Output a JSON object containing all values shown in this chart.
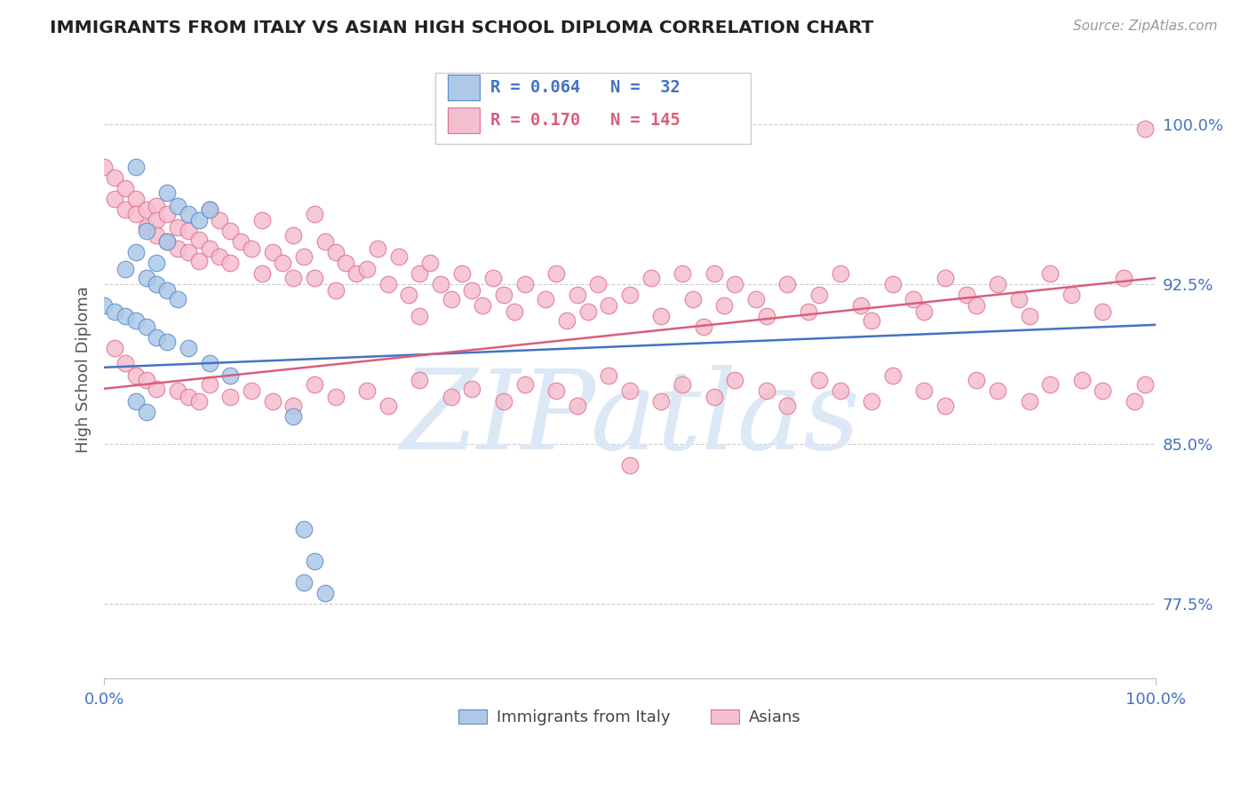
{
  "title": "IMMIGRANTS FROM ITALY VS ASIAN HIGH SCHOOL DIPLOMA CORRELATION CHART",
  "source": "Source: ZipAtlas.com",
  "ylabel": "High School Diploma",
  "x_tick_labels": [
    "0.0%",
    "100.0%"
  ],
  "y_tick_labels": [
    "77.5%",
    "85.0%",
    "92.5%",
    "100.0%"
  ],
  "y_tick_values": [
    0.775,
    0.85,
    0.925,
    1.0
  ],
  "legend_label_blue": "Immigrants from Italy",
  "legend_label_pink": "Asians",
  "R_blue": 0.064,
  "N_blue": 32,
  "R_pink": 0.17,
  "N_pink": 145,
  "blue_color": "#adc8e8",
  "blue_edge_color": "#5b8bc9",
  "pink_color": "#f5bece",
  "pink_edge_color": "#e07090",
  "blue_line_color": "#4472c4",
  "pink_line_color": "#d95f7a",
  "title_color": "#222222",
  "tick_label_color": "#4472c4",
  "source_color": "#999999",
  "ylabel_color": "#555555",
  "background_color": "#ffffff",
  "watermark_color": "#dce8f5",
  "blue_scatter_x": [
    0.03,
    0.06,
    0.07,
    0.08,
    0.09,
    0.1,
    0.04,
    0.06,
    0.03,
    0.05,
    0.02,
    0.04,
    0.05,
    0.06,
    0.07,
    0.0,
    0.01,
    0.02,
    0.03,
    0.04,
    0.05,
    0.06,
    0.08,
    0.1,
    0.12,
    0.03,
    0.04,
    0.18,
    0.19,
    0.2,
    0.19,
    0.21
  ],
  "blue_scatter_y": [
    0.98,
    0.968,
    0.962,
    0.958,
    0.955,
    0.96,
    0.95,
    0.945,
    0.94,
    0.935,
    0.932,
    0.928,
    0.925,
    0.922,
    0.918,
    0.915,
    0.912,
    0.91,
    0.908,
    0.905,
    0.9,
    0.898,
    0.895,
    0.888,
    0.882,
    0.87,
    0.865,
    0.863,
    0.81,
    0.795,
    0.785,
    0.78
  ],
  "pink_scatter_x": [
    0.0,
    0.01,
    0.01,
    0.02,
    0.02,
    0.03,
    0.03,
    0.04,
    0.04,
    0.05,
    0.05,
    0.05,
    0.06,
    0.06,
    0.07,
    0.07,
    0.08,
    0.08,
    0.09,
    0.09,
    0.1,
    0.1,
    0.11,
    0.11,
    0.12,
    0.12,
    0.13,
    0.14,
    0.15,
    0.15,
    0.16,
    0.17,
    0.18,
    0.18,
    0.19,
    0.2,
    0.2,
    0.21,
    0.22,
    0.22,
    0.23,
    0.24,
    0.25,
    0.26,
    0.27,
    0.28,
    0.29,
    0.3,
    0.3,
    0.31,
    0.32,
    0.33,
    0.34,
    0.35,
    0.36,
    0.37,
    0.38,
    0.39,
    0.4,
    0.42,
    0.43,
    0.44,
    0.45,
    0.46,
    0.47,
    0.48,
    0.5,
    0.52,
    0.53,
    0.55,
    0.56,
    0.57,
    0.58,
    0.59,
    0.6,
    0.62,
    0.63,
    0.65,
    0.67,
    0.68,
    0.7,
    0.72,
    0.73,
    0.75,
    0.77,
    0.78,
    0.8,
    0.82,
    0.83,
    0.85,
    0.87,
    0.88,
    0.9,
    0.92,
    0.95,
    0.97,
    0.99,
    0.01,
    0.02,
    0.03,
    0.04,
    0.05,
    0.07,
    0.08,
    0.09,
    0.1,
    0.12,
    0.14,
    0.16,
    0.18,
    0.2,
    0.22,
    0.25,
    0.27,
    0.3,
    0.33,
    0.35,
    0.38,
    0.4,
    0.43,
    0.45,
    0.48,
    0.5,
    0.53,
    0.55,
    0.58,
    0.6,
    0.63,
    0.65,
    0.68,
    0.7,
    0.73,
    0.75,
    0.78,
    0.8,
    0.83,
    0.85,
    0.88,
    0.9,
    0.93,
    0.95,
    0.98,
    0.99,
    0.5
  ],
  "pink_scatter_y": [
    0.98,
    0.975,
    0.965,
    0.97,
    0.96,
    0.965,
    0.958,
    0.96,
    0.952,
    0.962,
    0.955,
    0.948,
    0.958,
    0.945,
    0.952,
    0.942,
    0.95,
    0.94,
    0.946,
    0.936,
    0.96,
    0.942,
    0.955,
    0.938,
    0.95,
    0.935,
    0.945,
    0.942,
    0.955,
    0.93,
    0.94,
    0.935,
    0.948,
    0.928,
    0.938,
    0.958,
    0.928,
    0.945,
    0.94,
    0.922,
    0.935,
    0.93,
    0.932,
    0.942,
    0.925,
    0.938,
    0.92,
    0.93,
    0.91,
    0.935,
    0.925,
    0.918,
    0.93,
    0.922,
    0.915,
    0.928,
    0.92,
    0.912,
    0.925,
    0.918,
    0.93,
    0.908,
    0.92,
    0.912,
    0.925,
    0.915,
    0.92,
    0.928,
    0.91,
    0.93,
    0.918,
    0.905,
    0.93,
    0.915,
    0.925,
    0.918,
    0.91,
    0.925,
    0.912,
    0.92,
    0.93,
    0.915,
    0.908,
    0.925,
    0.918,
    0.912,
    0.928,
    0.92,
    0.915,
    0.925,
    0.918,
    0.91,
    0.93,
    0.92,
    0.912,
    0.928,
    0.998,
    0.895,
    0.888,
    0.882,
    0.88,
    0.876,
    0.875,
    0.872,
    0.87,
    0.878,
    0.872,
    0.875,
    0.87,
    0.868,
    0.878,
    0.872,
    0.875,
    0.868,
    0.88,
    0.872,
    0.876,
    0.87,
    0.878,
    0.875,
    0.868,
    0.882,
    0.875,
    0.87,
    0.878,
    0.872,
    0.88,
    0.875,
    0.868,
    0.88,
    0.875,
    0.87,
    0.882,
    0.875,
    0.868,
    0.88,
    0.875,
    0.87,
    0.878,
    0.88,
    0.875,
    0.87,
    0.878,
    0.84
  ],
  "xlim": [
    0.0,
    1.0
  ],
  "ylim": [
    0.74,
    1.03
  ],
  "blue_trend": [
    0.886,
    0.906
  ],
  "pink_trend": [
    0.876,
    0.928
  ]
}
